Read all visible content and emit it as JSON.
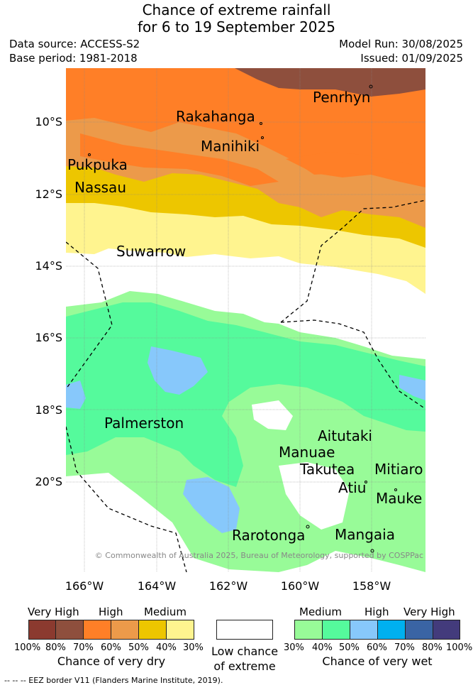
{
  "title": {
    "line1": "Chance of extreme rainfall",
    "line2": "for 6 to 19 September 2025"
  },
  "meta": {
    "data_source": "Data source: ACCESS-S2",
    "base_period": "Base period: 1981-2018",
    "model_run": "Model Run: 30/08/2025",
    "issued": "Issued: 01/09/2025"
  },
  "axes": {
    "y_ticks": [
      "10°S",
      "12°S",
      "14°S",
      "16°S",
      "18°S",
      "20°S"
    ],
    "x_ticks": [
      "166°W",
      "164°W",
      "162°W",
      "160°W",
      "158°W"
    ]
  },
  "places": [
    {
      "name": "Penrhyn"
    },
    {
      "name": "Rakahanga"
    },
    {
      "name": "Manihiki"
    },
    {
      "name": "Pukpuka"
    },
    {
      "name": "Nassau"
    },
    {
      "name": "Suwarrow"
    },
    {
      "name": "Palmerston"
    },
    {
      "name": "Aitutaki"
    },
    {
      "name": "Manuae"
    },
    {
      "name": "Takutea"
    },
    {
      "name": "Mitiaro"
    },
    {
      "name": "Atiu"
    },
    {
      "name": "Mauke"
    },
    {
      "name": "Rarotonga"
    },
    {
      "name": "Mangaia"
    }
  ],
  "copyright": "© Commonwealth of Australia 2025, Bureau of Meteorology, supported by COSPPac",
  "legend": {
    "dry": {
      "headings": [
        "Very High",
        "High",
        "Medium"
      ],
      "percents": [
        "100%",
        "80%",
        "70%",
        "60%",
        "50%",
        "40%",
        "30%"
      ],
      "caption": "Chance of very dry",
      "colors": [
        "#8b3a2f",
        "#8e4f3d",
        "#ff7f27",
        "#ec9a4a",
        "#edc600",
        "#fff48f"
      ]
    },
    "low": {
      "line1": "Low chance",
      "line2": "of extreme",
      "color": "#ffffff"
    },
    "wet": {
      "headings": [
        "Medium",
        "High",
        "Very High"
      ],
      "percents": [
        "30%",
        "40%",
        "50%",
        "60%",
        "70%",
        "80%",
        "100%"
      ],
      "caption": "Chance of very wet",
      "colors": [
        "#98fb98",
        "#55fa9c",
        "#87c8fb",
        "#00b0ef",
        "#3a64a4",
        "#433b7c"
      ]
    }
  },
  "footer": "-- -- -- EEZ border V11 (Flanders Marine Institute, 2019)."
}
